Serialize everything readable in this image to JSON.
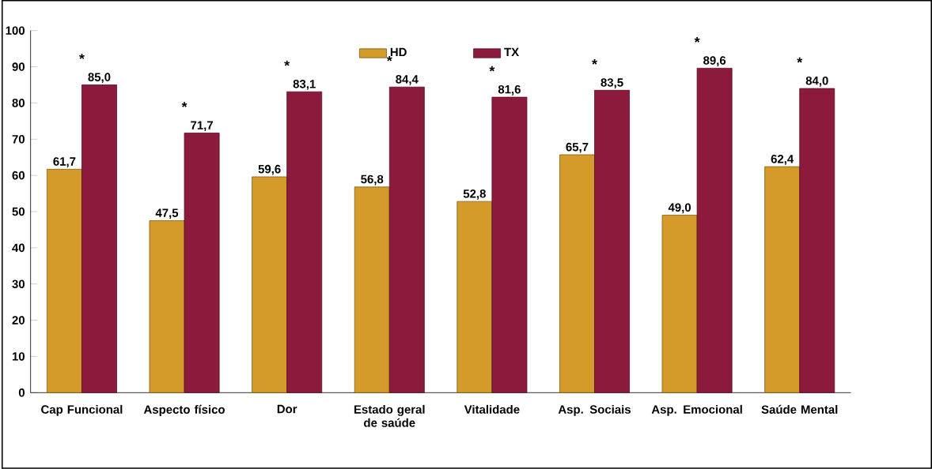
{
  "chart_data": {
    "type": "bar",
    "categories": [
      "Cap Funcional",
      "Aspecto físico",
      "Dor",
      "Estado geral de saúde",
      "Vitalidade",
      "Asp. Sociais",
      "Asp. Emocional",
      "Saúde Mental"
    ],
    "series": [
      {
        "name": "HD",
        "color": "#d49a2a",
        "values": [
          61.7,
          47.5,
          59.6,
          56.8,
          52.8,
          65.7,
          49.0,
          62.4
        ],
        "value_labels": [
          "61,7",
          "47,5",
          "59,6",
          "56,8",
          "52,8",
          "65,7",
          "49,0",
          "62,4"
        ]
      },
      {
        "name": "TX",
        "color": "#8c1a3c",
        "values": [
          85.0,
          71.7,
          83.1,
          84.4,
          81.6,
          83.5,
          89.6,
          84.0
        ],
        "value_labels": [
          "85,0",
          "71,7",
          "83,1",
          "84,4",
          "81,6",
          "83,5",
          "89,6",
          "84,0"
        ]
      }
    ],
    "ylim": [
      0,
      100
    ],
    "yticks": [
      0,
      10,
      20,
      30,
      40,
      50,
      60,
      70,
      80,
      90,
      100
    ],
    "legend": "top",
    "grid": false,
    "annotations": [
      {
        "text": "*",
        "x": "Cap Funcional",
        "y": 85.0
      },
      {
        "text": "*",
        "x": "Aspecto físico",
        "y": 71.7
      },
      {
        "text": "*",
        "x": "Dor",
        "y": 83.1
      },
      {
        "text": "*",
        "x": "Estado geral de saúde",
        "y": 84.4
      },
      {
        "text": "*",
        "x": "Vitalidade",
        "y": 81.6
      },
      {
        "text": "*",
        "x": "Asp. Sociais",
        "y": 83.5
      },
      {
        "text": "*",
        "x": "Asp. Emocional",
        "y": 89.6
      },
      {
        "text": "*",
        "x": "Saúde Mental",
        "y": 84.0
      }
    ]
  }
}
